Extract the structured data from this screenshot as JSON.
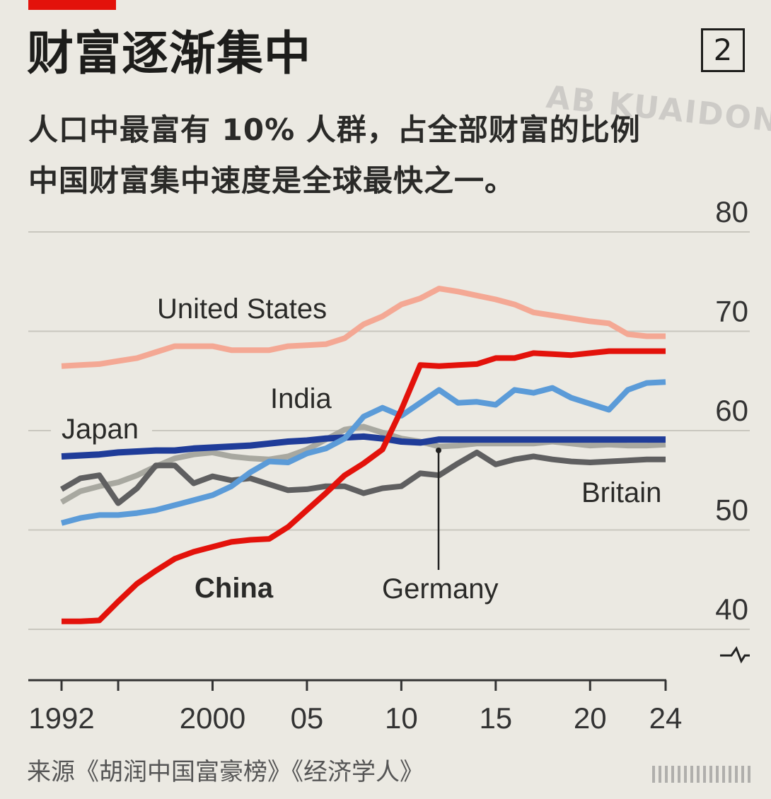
{
  "header": {
    "title": "财富逐渐集中",
    "chart_number": "2",
    "subtitle_line1": "人口中最富有 10% 人群，占全部财富的比例",
    "subtitle_line2": "中国财富集中速度是全球最快之一。",
    "watermark": "AB KUAIDONG"
  },
  "footer": {
    "source": "来源《胡润中国富豪榜》《经济学人》"
  },
  "colors": {
    "accent": "#e3120b",
    "background": "#ebe9e2"
  },
  "chart_data": {
    "type": "line",
    "title": "财富逐渐集中",
    "subtitle": "人口中最富有 10% 人群，占全部财富的比例",
    "ylim": [
      38,
      80
    ],
    "y_ticks": [
      "80",
      "70",
      "60",
      "50",
      "40"
    ],
    "y_axis_position": "right",
    "y_axis_break": true,
    "grid": true,
    "xlim": [
      1992,
      2024
    ],
    "x_tick_years": [
      1992,
      1995,
      2000,
      2005,
      2010,
      2015,
      2020,
      2024
    ],
    "x_tick_labels": [
      "1992",
      "",
      "2000",
      "05",
      "10",
      "15",
      "20",
      "24"
    ],
    "x": [
      1992,
      1993,
      1994,
      1995,
      1996,
      1997,
      1998,
      1999,
      2000,
      2001,
      2002,
      2003,
      2004,
      2005,
      2006,
      2007,
      2008,
      2009,
      2010,
      2011,
      2012,
      2013,
      2014,
      2015,
      2016,
      2017,
      2018,
      2019,
      2020,
      2021,
      2022,
      2023,
      2024
    ],
    "series": [
      {
        "name": "United States",
        "color": "#f4a894",
        "values": [
          66.5,
          66.6,
          66.7,
          67.0,
          67.3,
          67.9,
          68.5,
          68.5,
          68.5,
          68.1,
          68.1,
          68.1,
          68.5,
          68.6,
          68.7,
          69.3,
          70.7,
          71.5,
          72.7,
          73.3,
          74.3,
          74.0,
          73.6,
          73.2,
          72.7,
          71.9,
          71.6,
          71.3,
          71.0,
          70.8,
          69.7,
          69.5,
          69.5
        ]
      },
      {
        "name": "China",
        "color": "#e3120b",
        "values": [
          40.8,
          40.8,
          40.9,
          42.8,
          44.6,
          45.9,
          47.1,
          47.8,
          48.3,
          48.8,
          49.0,
          49.1,
          50.3,
          52.0,
          53.7,
          55.5,
          56.7,
          58.1,
          62.1,
          66.6,
          66.5,
          66.6,
          66.7,
          67.3,
          67.3,
          67.8,
          67.7,
          67.6,
          67.8,
          68.0,
          68.0,
          68.0,
          68.0
        ]
      },
      {
        "name": "India",
        "color": "#5b9bd8",
        "values": [
          50.7,
          51.2,
          51.5,
          51.5,
          51.7,
          52.0,
          52.5,
          53.0,
          53.5,
          54.4,
          55.8,
          56.9,
          56.8,
          57.7,
          58.2,
          59.2,
          61.4,
          62.3,
          61.5,
          62.8,
          64.1,
          62.8,
          62.9,
          62.6,
          64.1,
          63.8,
          64.3,
          63.3,
          62.7,
          62.1,
          64.1,
          64.8,
          64.9
        ]
      },
      {
        "name": "Japan",
        "color": "#1f3c99",
        "values": [
          57.4,
          57.5,
          57.6,
          57.8,
          57.9,
          58.0,
          58.0,
          58.2,
          58.3,
          58.4,
          58.5,
          58.7,
          58.9,
          59.0,
          59.2,
          59.3,
          59.4,
          59.2,
          58.9,
          58.8,
          59.1,
          59.1,
          59.1,
          59.1,
          59.1,
          59.1,
          59.1,
          59.1,
          59.1,
          59.1,
          59.1,
          59.1,
          59.1
        ]
      },
      {
        "name": "Germany",
        "color": "#a8a8a0",
        "values": [
          52.8,
          53.9,
          54.4,
          54.8,
          55.5,
          56.4,
          57.2,
          57.6,
          57.8,
          57.4,
          57.2,
          57.1,
          57.4,
          58.1,
          59.1,
          60.1,
          60.4,
          59.8,
          59.2,
          58.9,
          58.4,
          58.5,
          58.7,
          58.7,
          58.7,
          58.7,
          58.9,
          58.7,
          58.5,
          58.6,
          58.5,
          58.5,
          58.6
        ]
      },
      {
        "name": "Britain",
        "color": "#5f5f60",
        "values": [
          54.1,
          55.2,
          55.5,
          52.7,
          54.2,
          56.5,
          56.5,
          54.7,
          55.4,
          55.0,
          55.2,
          54.6,
          54.0,
          54.1,
          54.4,
          54.4,
          53.7,
          54.2,
          54.4,
          55.7,
          55.5,
          56.7,
          57.8,
          56.6,
          57.1,
          57.4,
          57.1,
          56.9,
          56.8,
          56.9,
          57.0,
          57.1,
          57.1
        ]
      }
    ]
  }
}
